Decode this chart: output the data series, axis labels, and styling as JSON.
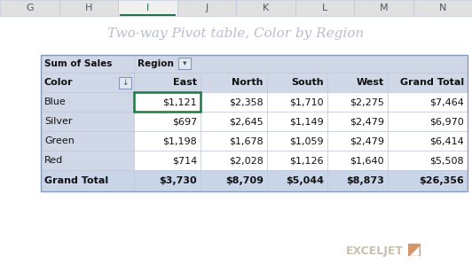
{
  "title": "Two-way Pivot table, Color by Region",
  "title_color": "#b8bdd0",
  "title_fontsize": 11,
  "bg_color": "#ffffff",
  "tab_bg": "#e0e0e0",
  "tab_selected_bg": "#f0f0f0",
  "tab_selected": "I",
  "tab_selected_underline": "#217346",
  "tab_labels": [
    "G",
    "H",
    "I",
    "J",
    "K",
    "L",
    "M",
    "N"
  ],
  "tab_label_color": "#555566",
  "tab_selected_color": "#217346",
  "col_header_bg": "#d0d8e8",
  "cell_bg": "#ffffff",
  "grand_total_bg": "#c8d4e8",
  "selected_cell_border": "#1a7a40",
  "gridline_color": "#c0c8d8",
  "table_border_color": "#8898b8",
  "text_color": "#111111",
  "col_labels": [
    "Color",
    "East",
    "North",
    "South",
    "West",
    "Grand Total"
  ],
  "rows": [
    [
      "Blue",
      "$1,121",
      "$2,358",
      "$1,710",
      "$2,275",
      "$7,464"
    ],
    [
      "Silver",
      "$697",
      "$2,645",
      "$1,149",
      "$2,479",
      "$6,970"
    ],
    [
      "Green",
      "$1,198",
      "$1,678",
      "$1,059",
      "$2,479",
      "$6,414"
    ],
    [
      "Red",
      "$714",
      "$2,028",
      "$1,126",
      "$1,640",
      "$5,508"
    ]
  ],
  "grand_total_row": [
    "Grand Total",
    "$3,730",
    "$8,709",
    "$5,044",
    "$8,873",
    "$26,356"
  ],
  "watermark_text": "EXCELJET",
  "watermark_color": "#c8c0b0",
  "watermark_box_color": "#d4956a"
}
